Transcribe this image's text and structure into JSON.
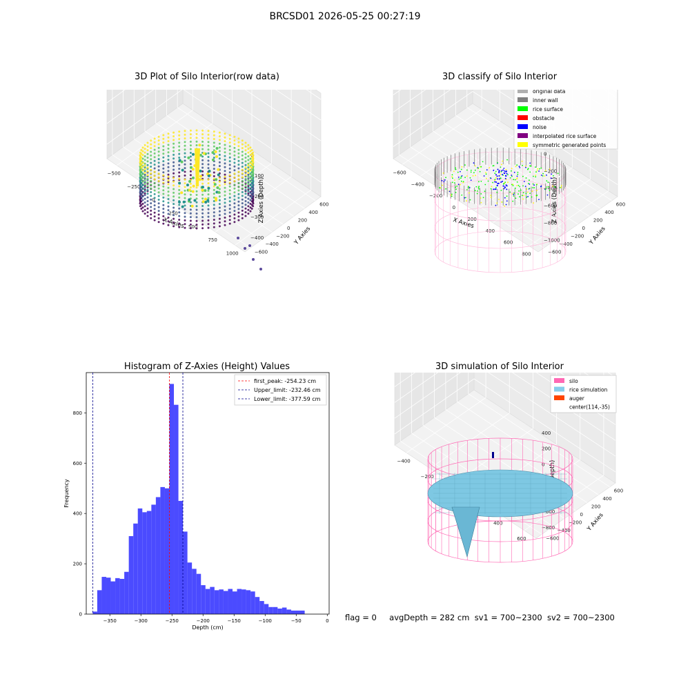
{
  "suptitle": "BRCSD01 2026-05-25 00:27:19",
  "panels": {
    "raw": {
      "title": "3D Plot of Silo Interior(row data)",
      "xlabel": "X Axies",
      "ylabel": "Y Axies",
      "zlabel": "Z Axies (Depth)",
      "x_ticks": [
        "−500",
        "−250",
        "0",
        "250",
        "500",
        "750",
        "1000"
      ],
      "y_ticks": [
        "−600",
        "−400",
        "−200",
        "0",
        "200",
        "400",
        "600"
      ],
      "z_ticks": [
        "0",
        "−100",
        "−200",
        "−300",
        "−400"
      ],
      "colormap": [
        "#440154",
        "#3b528b",
        "#21918c",
        "#5ec962",
        "#fde725"
      ]
    },
    "classify": {
      "title": "3D classify of Silo Interior",
      "xlabel": "X Axies",
      "ylabel": "Y Axies",
      "zlabel": "Z Axies (Depth)",
      "x_ticks": [
        "−600",
        "−400",
        "−200",
        "0",
        "200",
        "400",
        "600",
        "800"
      ],
      "y_ticks": [
        "−600",
        "−400",
        "−200",
        "0",
        "200",
        "400",
        "600"
      ],
      "z_ticks": [
        "0",
        "−200",
        "−400",
        "−600",
        "−800",
        "−1000"
      ],
      "legend": [
        {
          "label": "original data",
          "color": "#b0b0b0"
        },
        {
          "label": "inner wall",
          "color": "#808080"
        },
        {
          "label": "rice surface",
          "color": "#00ff00"
        },
        {
          "label": "obstacle",
          "color": "#ff0000"
        },
        {
          "label": "noise",
          "color": "#0000ff"
        },
        {
          "label": "interpolated rice surface",
          "color": "#800080"
        },
        {
          "label": "symmetric generated points",
          "color": "#ffff00"
        }
      ],
      "wire_color": "#ffb6d9"
    },
    "hist": {
      "title": "Histogram of Z-Axies (Height) Values",
      "xlabel": "Depth (cm)",
      "ylabel": "Frequency",
      "legend": [
        {
          "label": "first_peak: -254.23 cm",
          "color": "#ff0000"
        },
        {
          "label": "Upper_limit: -232.46 cm",
          "color": "#00008b"
        },
        {
          "label": "Lower_limit: -377.59 cm",
          "color": "#00008b"
        }
      ]
    },
    "sim": {
      "title": "3D simulation of Silo Interior",
      "xlabel": "X Axies",
      "ylabel": "Y Axies",
      "zlabel": "Z Axies (Depth)",
      "x_ticks": [
        "−400",
        "−200",
        "0",
        "200",
        "400",
        "600"
      ],
      "y_ticks": [
        "−600",
        "−400",
        "−200",
        "0",
        "200",
        "400",
        "600"
      ],
      "z_ticks": [
        "400",
        "200",
        "0",
        "−200",
        "−400",
        "−600",
        "−800"
      ],
      "legend": [
        {
          "label": "silo",
          "color": "#ff69b4"
        },
        {
          "label": "rice simulation",
          "color": "#87ceeb"
        },
        {
          "label": "auger",
          "color": "#ff4500"
        },
        {
          "label": "center(114,-35)",
          "color": ""
        }
      ],
      "surface_color": "#7ec8e3",
      "wire_color": "#ff69b4"
    }
  },
  "footer": {
    "flag": "flag = 0",
    "avg": "avgDepth = 282 cm",
    "sv1": "sv1 = 700~2300",
    "sv2": "sv2 = 700~2300"
  },
  "chart_data": [
    {
      "type": "scatter",
      "title": "3D Plot of Silo Interior(row data)",
      "xlabel": "X Axies",
      "ylabel": "Y Axies",
      "zlabel": "Z Axies (Depth)",
      "xlim": [
        -550,
        1050
      ],
      "ylim": [
        -650,
        650
      ],
      "zlim": [
        -450,
        0
      ]
    },
    {
      "type": "scatter",
      "title": "3D classify of Silo Interior",
      "xlabel": "X Axies",
      "ylabel": "Y Axies",
      "zlabel": "Z Axies (Depth)",
      "xlim": [
        -650,
        850
      ],
      "ylim": [
        -650,
        650
      ],
      "zlim": [
        -1050,
        0
      ]
    },
    {
      "type": "bar",
      "title": "Histogram of Z-Axies (Height) Values",
      "xlabel": "Depth (cm)",
      "ylabel": "Frequency",
      "xlim": [
        -388,
        3
      ],
      "ylim": [
        0,
        960
      ],
      "x_ticks": [
        -350,
        -300,
        -250,
        -200,
        -150,
        -100,
        -50,
        0
      ],
      "y_ticks": [
        0,
        200,
        400,
        600,
        800
      ],
      "bin_start": -377.59,
      "bin_width": 7.26,
      "values": [
        10,
        95,
        148,
        145,
        130,
        143,
        140,
        168,
        310,
        360,
        420,
        405,
        410,
        435,
        465,
        505,
        500,
        915,
        832,
        450,
        328,
        205,
        180,
        160,
        115,
        100,
        108,
        95,
        98,
        92,
        100,
        90,
        100,
        98,
        95,
        90,
        68,
        52,
        40,
        28,
        28,
        22,
        26,
        18,
        14,
        14,
        14
      ],
      "vlines": [
        {
          "x": -254.23,
          "label": "first_peak: -254.23 cm"
        },
        {
          "x": -232.46,
          "label": "Upper_limit: -232.46 cm"
        },
        {
          "x": -377.59,
          "label": "Lower_limit: -377.59 cm"
        }
      ],
      "legend_placement": "top-right"
    },
    {
      "type": "surface",
      "title": "3D simulation of Silo Interior",
      "xlabel": "X Axies",
      "ylabel": "Y Axies",
      "zlabel": "Z Axies (Depth)",
      "xlim": [
        -500,
        700
      ],
      "ylim": [
        -650,
        650
      ],
      "zlim": [
        -850,
        450
      ]
    }
  ]
}
